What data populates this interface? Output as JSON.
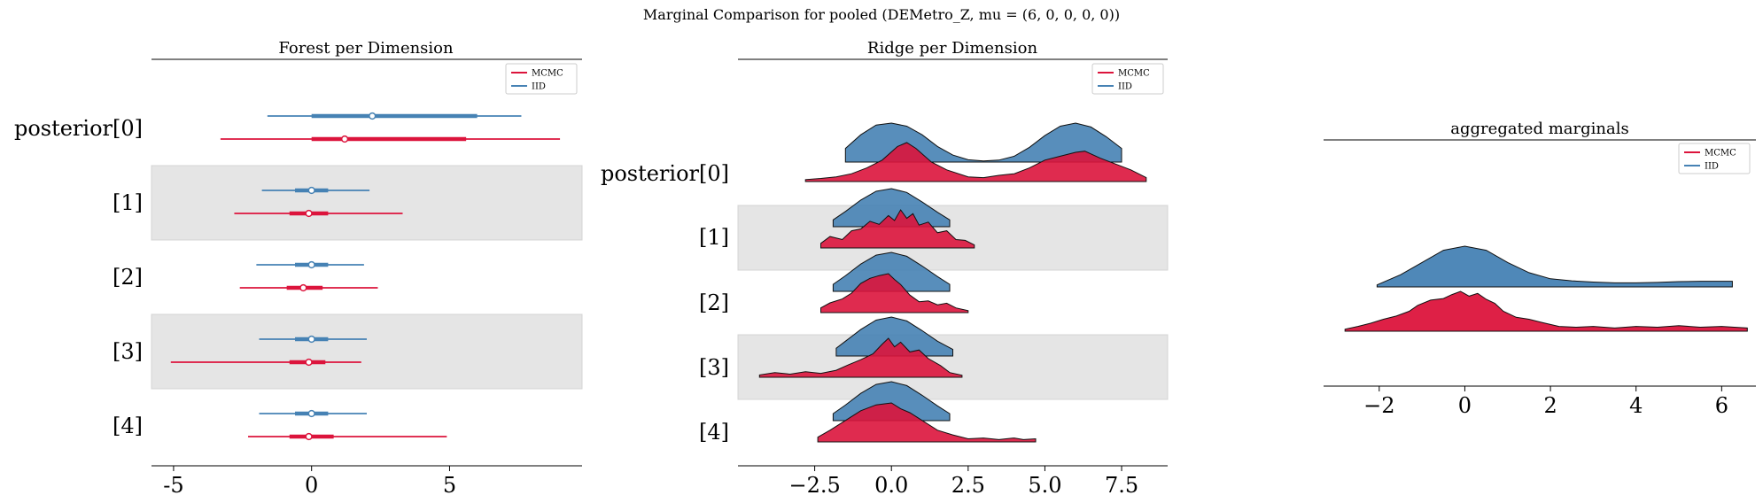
{
  "suptitle": "Marginal Comparison for pooled (DEMetro_Z, mu = (6, 0, 0, 0, 0))",
  "colors": {
    "mcmc": "#dc143c",
    "iid": "#4682b4",
    "band": "#e5e5e5"
  },
  "legend": {
    "mcmc": "MCMC",
    "iid": "IID"
  },
  "chart_data": [
    {
      "type": "forest",
      "title": "Forest per Dimension",
      "row_labels": [
        "posterior[0]",
        "[1]",
        "[2]",
        "[3]",
        "[4]"
      ],
      "xticks": [
        -5,
        0,
        5
      ],
      "xlim": [
        -5.8,
        9.8
      ],
      "series": [
        {
          "name": "IID",
          "color_key": "iid",
          "rows": [
            {
              "hdi": [
                -1.6,
                7.6
              ],
              "iqr": [
                0.0,
                6.0
              ],
              "median": 2.2
            },
            {
              "hdi": [
                -1.8,
                2.1
              ],
              "iqr": [
                -0.6,
                0.6
              ],
              "median": 0.0
            },
            {
              "hdi": [
                -2.0,
                1.9
              ],
              "iqr": [
                -0.6,
                0.6
              ],
              "median": 0.0
            },
            {
              "hdi": [
                -1.9,
                2.0
              ],
              "iqr": [
                -0.6,
                0.6
              ],
              "median": 0.0
            },
            {
              "hdi": [
                -1.9,
                2.0
              ],
              "iqr": [
                -0.6,
                0.6
              ],
              "median": 0.0
            }
          ]
        },
        {
          "name": "MCMC",
          "color_key": "mcmc",
          "rows": [
            {
              "hdi": [
                -3.3,
                9.0
              ],
              "iqr": [
                0.0,
                5.6
              ],
              "median": 1.2
            },
            {
              "hdi": [
                -2.8,
                3.3
              ],
              "iqr": [
                -0.8,
                0.6
              ],
              "median": -0.1
            },
            {
              "hdi": [
                -2.6,
                2.4
              ],
              "iqr": [
                -0.9,
                0.4
              ],
              "median": -0.3
            },
            {
              "hdi": [
                -5.1,
                1.8
              ],
              "iqr": [
                -0.8,
                0.5
              ],
              "median": -0.1
            },
            {
              "hdi": [
                -2.3,
                4.9
              ],
              "iqr": [
                -0.8,
                0.8
              ],
              "median": -0.1
            }
          ]
        }
      ]
    },
    {
      "type": "ridge",
      "title": "Ridge per Dimension",
      "row_labels": [
        "posterior[0]",
        "[1]",
        "[2]",
        "[3]",
        "[4]"
      ],
      "xticks": [
        -2.5,
        0.0,
        2.5,
        5.0,
        7.5
      ],
      "xtick_labels": [
        "−2.5",
        "0.0",
        "2.5",
        "5.0",
        "7.5"
      ],
      "xlim": [
        -5.0,
        9.0
      ],
      "series": [
        {
          "name": "IID",
          "color_key": "iid",
          "rows": [
            {
              "x": [
                -1.5,
                -1,
                -0.5,
                0,
                0.5,
                1,
                1.5,
                2,
                2.5,
                3,
                3.5,
                4,
                4.5,
                5,
                5.5,
                6,
                6.5,
                7,
                7.5
              ],
              "y": [
                0.35,
                0.7,
                0.95,
                1.0,
                0.92,
                0.7,
                0.4,
                0.18,
                0.06,
                0.03,
                0.05,
                0.15,
                0.38,
                0.68,
                0.92,
                1.0,
                0.9,
                0.65,
                0.35
              ]
            },
            {
              "x": [
                -1.9,
                -1.5,
                -1,
                -0.5,
                0,
                0.5,
                1,
                1.5,
                1.9
              ],
              "y": [
                0.18,
                0.4,
                0.7,
                0.93,
                1.0,
                0.9,
                0.65,
                0.38,
                0.18
              ]
            },
            {
              "x": [
                -1.9,
                -1.5,
                -1,
                -0.5,
                0,
                0.5,
                1,
                1.5,
                1.9
              ],
              "y": [
                0.18,
                0.4,
                0.7,
                0.93,
                1.0,
                0.9,
                0.65,
                0.38,
                0.18
              ]
            },
            {
              "x": [
                -1.8,
                -1.5,
                -1,
                -0.5,
                0,
                0.5,
                1,
                1.5,
                2.0
              ],
              "y": [
                0.2,
                0.38,
                0.68,
                0.92,
                1.0,
                0.9,
                0.65,
                0.38,
                0.17
              ]
            },
            {
              "x": [
                -1.9,
                -1.5,
                -1,
                -0.5,
                0,
                0.5,
                1,
                1.5,
                1.9
              ],
              "y": [
                0.18,
                0.4,
                0.7,
                0.93,
                1.0,
                0.9,
                0.65,
                0.38,
                0.18
              ]
            }
          ]
        },
        {
          "name": "MCMC",
          "color_key": "mcmc",
          "rows": [
            {
              "x": [
                -2.8,
                -2.3,
                -1.8,
                -1.3,
                -0.8,
                -0.3,
                0.2,
                0.5,
                0.8,
                1.3,
                1.8,
                2.5,
                3,
                3.5,
                4,
                4.5,
                5,
                5.5,
                6,
                6.3,
                6.8,
                7.3,
                7.8,
                8.3
              ],
              "y": [
                0.05,
                0.08,
                0.12,
                0.2,
                0.35,
                0.55,
                0.9,
                1.0,
                0.85,
                0.5,
                0.3,
                0.12,
                0.1,
                0.16,
                0.2,
                0.35,
                0.55,
                0.65,
                0.75,
                0.78,
                0.6,
                0.45,
                0.3,
                0.1
              ]
            },
            {
              "x": [
                -2.3,
                -2,
                -1.6,
                -1.3,
                -1,
                -0.7,
                -0.4,
                -0.1,
                0.1,
                0.3,
                0.5,
                0.7,
                0.9,
                1.2,
                1.5,
                1.8,
                2.1,
                2.4,
                2.7
              ],
              "y": [
                0.12,
                0.3,
                0.22,
                0.45,
                0.5,
                0.7,
                0.62,
                0.85,
                0.72,
                1.0,
                0.78,
                0.9,
                0.6,
                0.68,
                0.4,
                0.45,
                0.22,
                0.2,
                0.08
              ]
            },
            {
              "x": [
                -2.3,
                -2,
                -1.6,
                -1.3,
                -1,
                -0.7,
                -0.4,
                -0.1,
                0.1,
                0.3,
                0.6,
                0.9,
                1.2,
                1.5,
                1.8,
                2.1,
                2.5
              ],
              "y": [
                0.12,
                0.25,
                0.35,
                0.5,
                0.75,
                0.88,
                0.95,
                1.0,
                0.85,
                0.72,
                0.45,
                0.28,
                0.3,
                0.2,
                0.24,
                0.12,
                0.05
              ]
            },
            {
              "x": [
                -4.3,
                -3.8,
                -3.3,
                -2.8,
                -2.3,
                -1.8,
                -1.4,
                -1,
                -0.6,
                -0.3,
                -0.1,
                0.1,
                0.3,
                0.6,
                0.9,
                1.2,
                1.6,
                1.9,
                2.3
              ],
              "y": [
                0.06,
                0.12,
                0.08,
                0.14,
                0.1,
                0.18,
                0.32,
                0.45,
                0.6,
                0.85,
                1.0,
                0.78,
                0.9,
                0.65,
                0.7,
                0.48,
                0.3,
                0.12,
                0.05
              ]
            },
            {
              "x": [
                -2.4,
                -2,
                -1.5,
                -1,
                -0.5,
                0,
                0.3,
                0.6,
                1,
                1.5,
                2,
                2.5,
                3,
                3.5,
                4,
                4.3,
                4.7
              ],
              "y": [
                0.12,
                0.3,
                0.55,
                0.8,
                0.95,
                1.0,
                0.85,
                0.75,
                0.55,
                0.3,
                0.18,
                0.08,
                0.1,
                0.06,
                0.1,
                0.06,
                0.08
              ]
            }
          ]
        }
      ]
    },
    {
      "type": "ridge",
      "title": "aggregated marginals",
      "xticks": [
        -2,
        0,
        2,
        4,
        6
      ],
      "xtick_labels": [
        "−2",
        "0",
        "2",
        "4",
        "6"
      ],
      "xlim": [
        -3.3,
        6.8
      ],
      "series": [
        {
          "name": "IID",
          "color_key": "iid",
          "rows": [
            {
              "x": [
                -2.05,
                -1.5,
                -1,
                -0.5,
                0,
                0.5,
                1,
                1.5,
                2,
                2.5,
                3,
                3.5,
                4,
                4.5,
                5,
                5.5,
                6,
                6.25
              ],
              "y": [
                0.05,
                0.3,
                0.6,
                0.9,
                1.0,
                0.9,
                0.6,
                0.35,
                0.2,
                0.15,
                0.12,
                0.1,
                0.1,
                0.11,
                0.13,
                0.14,
                0.14,
                0.14
              ]
            }
          ]
        },
        {
          "name": "MCMC",
          "color_key": "mcmc",
          "rows": [
            {
              "x": [
                -2.8,
                -2.5,
                -2.2,
                -1.9,
                -1.6,
                -1.3,
                -1.1,
                -0.8,
                -0.5,
                -0.3,
                -0.1,
                0.1,
                0.3,
                0.5,
                0.7,
                0.9,
                1.2,
                1.5,
                1.8,
                2.2,
                2.6,
                3,
                3.5,
                4,
                4.5,
                5,
                5.5,
                6,
                6.3,
                6.6
              ],
              "y": [
                0.05,
                0.12,
                0.2,
                0.3,
                0.38,
                0.5,
                0.65,
                0.78,
                0.82,
                0.92,
                1.0,
                0.88,
                0.95,
                0.8,
                0.7,
                0.5,
                0.35,
                0.3,
                0.22,
                0.12,
                0.1,
                0.12,
                0.08,
                0.12,
                0.1,
                0.14,
                0.1,
                0.12,
                0.1,
                0.08
              ]
            }
          ]
        }
      ]
    }
  ]
}
